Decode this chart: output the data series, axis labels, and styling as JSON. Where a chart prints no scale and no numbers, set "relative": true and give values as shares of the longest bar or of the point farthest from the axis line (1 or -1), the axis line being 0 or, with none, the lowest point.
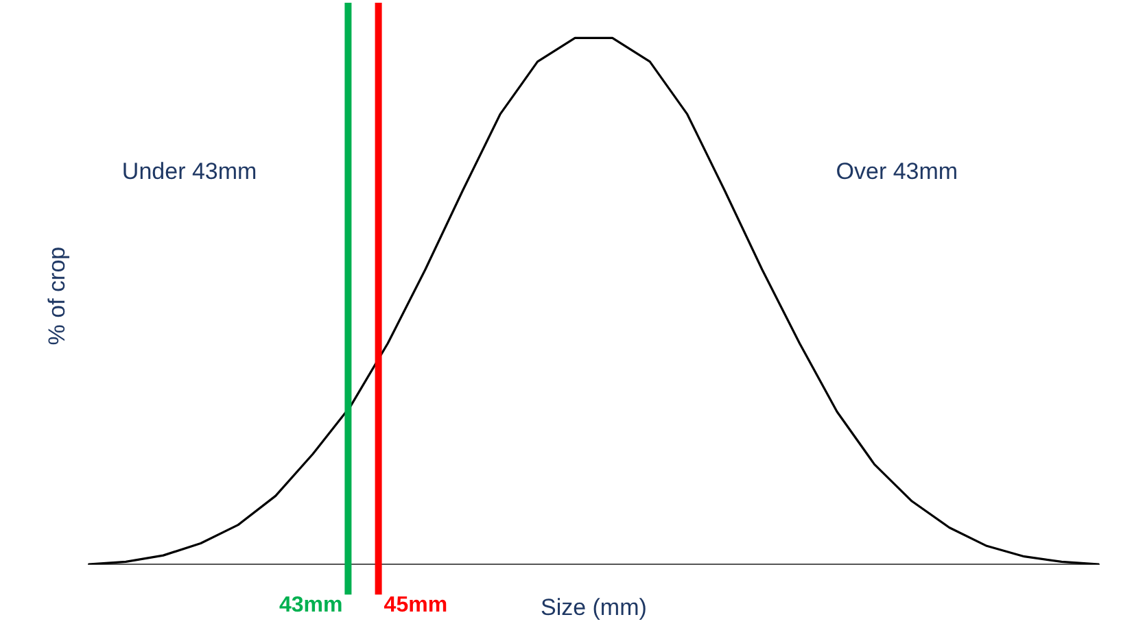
{
  "chart_data": {
    "type": "line",
    "relative": true,
    "xlabel": "Size (mm)",
    "ylabel": "% of crop",
    "categories": [
      null,
      null,
      null,
      null,
      null,
      null,
      null,
      null,
      null,
      null,
      null,
      null,
      null,
      null,
      null,
      null,
      null,
      null,
      null,
      null,
      null,
      null,
      null,
      null,
      null,
      null,
      null,
      null
    ],
    "series": [
      {
        "color": "#000000",
        "values": [
          0,
          0.005,
          0.017,
          0.04,
          0.075,
          0.13,
          0.21,
          0.3,
          0.42,
          0.56,
          0.71,
          0.855,
          0.955,
          1,
          1,
          0.955,
          0.855,
          0.71,
          0.56,
          0.42,
          0.29,
          0.19,
          0.12,
          0.07,
          0.035,
          0.015,
          0.005,
          0
        ]
      }
    ],
    "annotations": [
      "Under 43mm",
      "Over 43mm",
      "43mm",
      "45mm"
    ],
    "marker": "none",
    "line_style": "solid",
    "legend": false,
    "grid": false
  }
}
